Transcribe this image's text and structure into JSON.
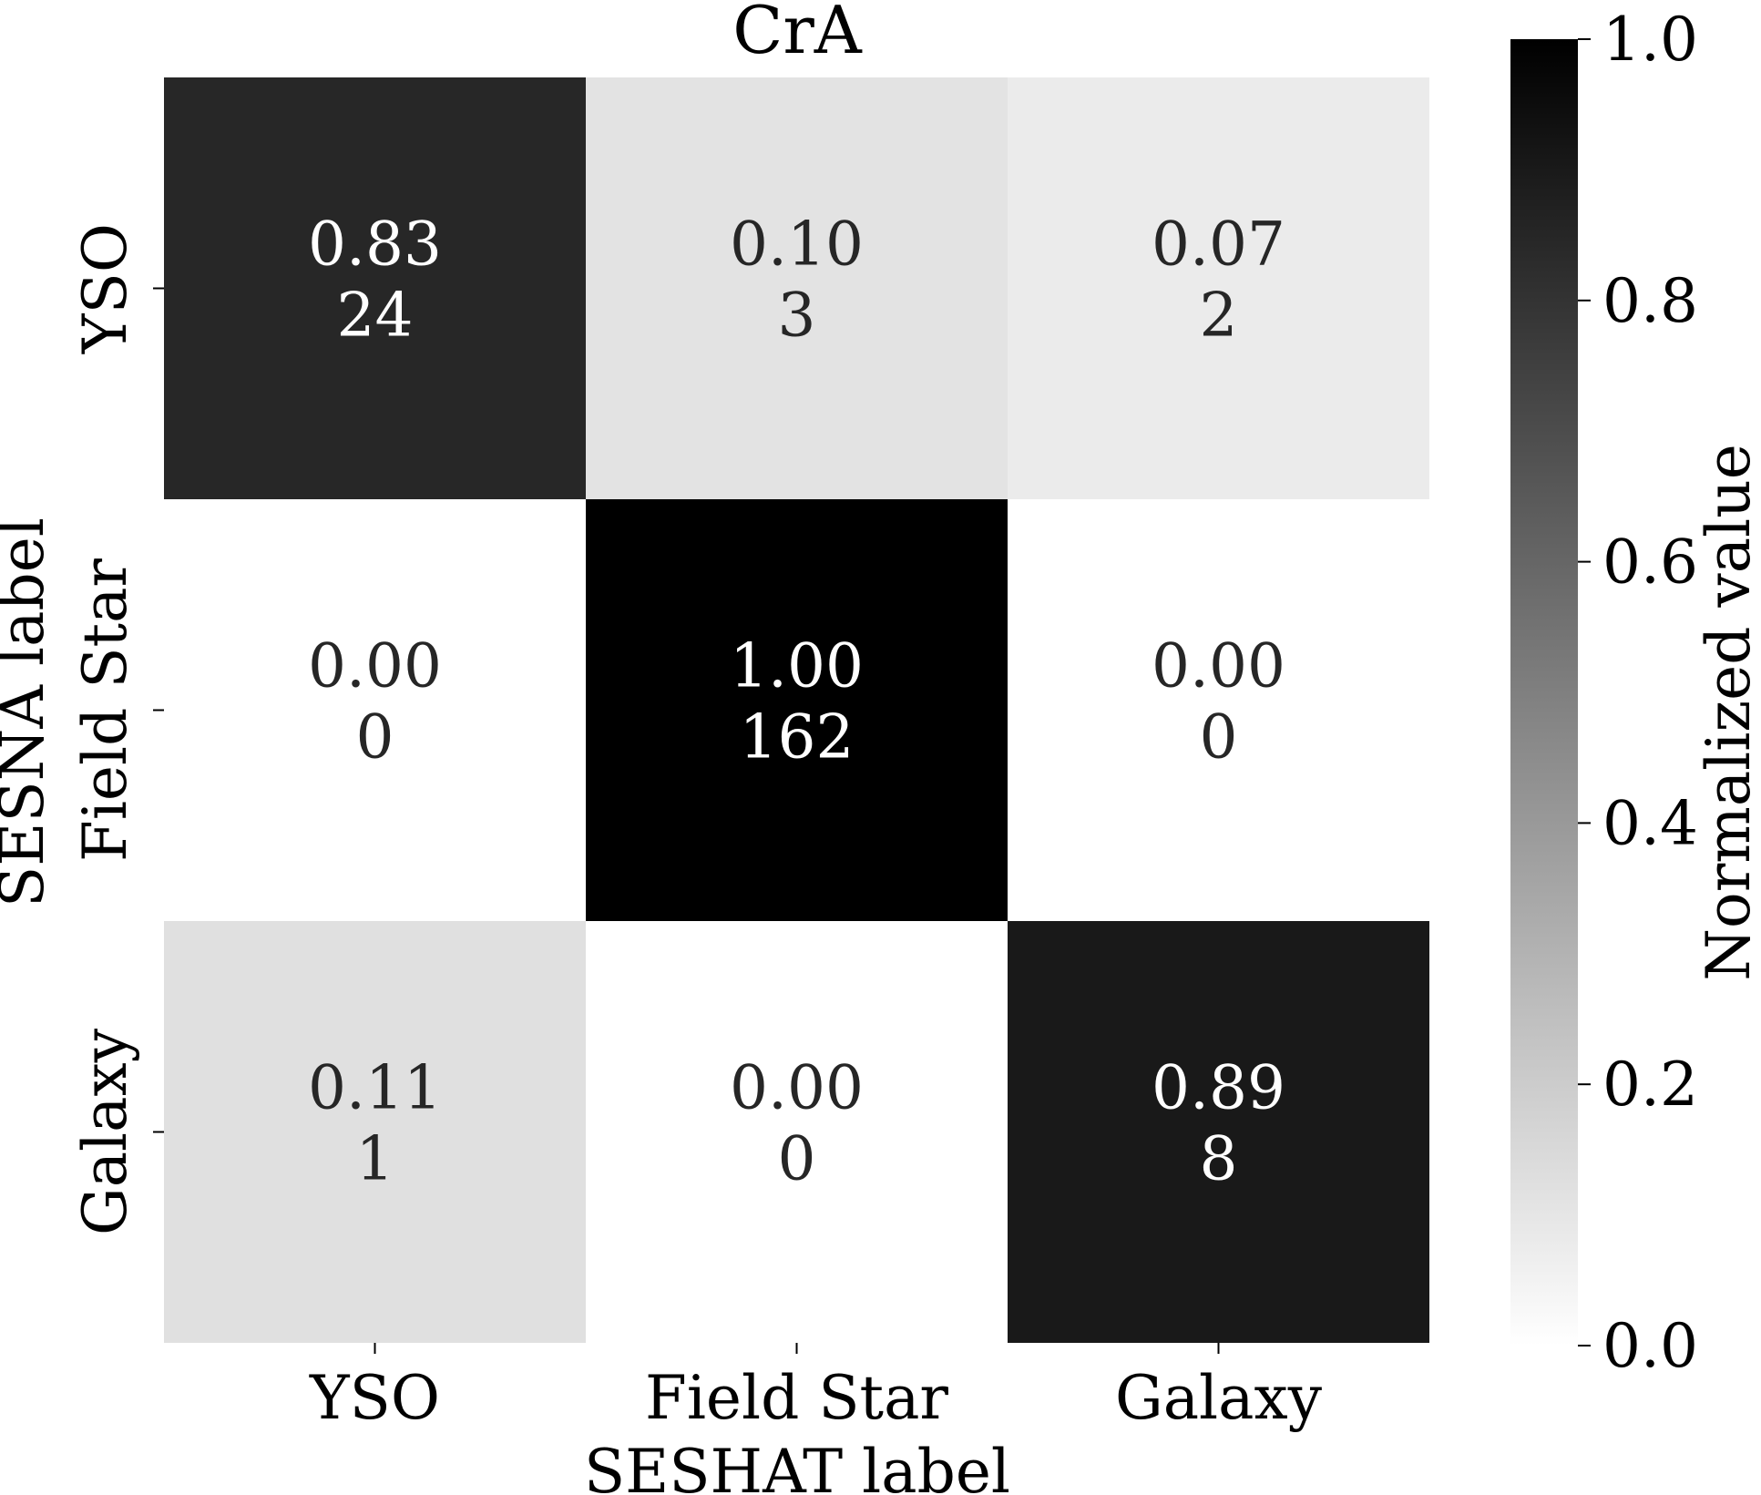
{
  "chart_data": {
    "type": "heatmap",
    "title": "CrA",
    "xlabel": "SESHAT label",
    "ylabel": "SESNA label",
    "x_categories": [
      "YSO",
      "Field Star",
      "Galaxy"
    ],
    "y_categories": [
      "YSO",
      "Field Star",
      "Galaxy"
    ],
    "normalized": [
      [
        0.83,
        0.1,
        0.07
      ],
      [
        0.0,
        1.0,
        0.0
      ],
      [
        0.11,
        0.0,
        0.89
      ]
    ],
    "normalized_labels": [
      [
        "0.83",
        "0.10",
        "0.07"
      ],
      [
        "0.00",
        "1.00",
        "0.00"
      ],
      [
        "0.11",
        "0.00",
        "0.89"
      ]
    ],
    "counts": [
      [
        24,
        3,
        2
      ],
      [
        0,
        162,
        0
      ],
      [
        1,
        0,
        8
      ]
    ],
    "colorbar": {
      "label": "Normalized value",
      "range": [
        0.0,
        1.0
      ],
      "ticks": [
        0.0,
        0.2,
        0.4,
        0.6,
        0.8,
        1.0
      ],
      "tick_labels": [
        "0.0",
        "0.2",
        "0.4",
        "0.6",
        "0.8",
        "1.0"
      ],
      "colormap": "greys",
      "low_color": "#ffffff",
      "high_color": "#000000"
    }
  }
}
